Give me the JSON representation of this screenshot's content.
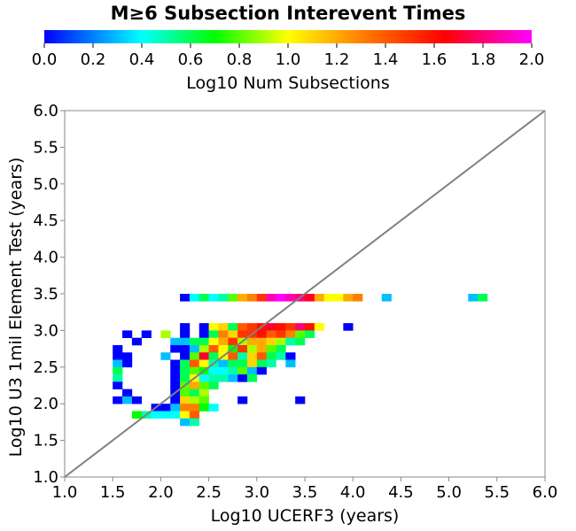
{
  "chart_data": {
    "type": "heatmap",
    "title": "M≥6 Subsection Interevent Times",
    "xlabel": "Log10 UCERF3 (years)",
    "ylabel": "Log10 U3 1mil Element Test (years)",
    "xlim": [
      1.0,
      6.0
    ],
    "ylim": [
      1.0,
      6.0
    ],
    "x_ticks": [
      "1.0",
      "1.5",
      "2.0",
      "2.5",
      "3.0",
      "3.5",
      "4.0",
      "4.5",
      "5.0",
      "5.5",
      "6.0"
    ],
    "y_ticks": [
      "1.0",
      "1.5",
      "2.0",
      "2.5",
      "3.0",
      "3.5",
      "4.0",
      "4.5",
      "5.0",
      "5.5",
      "6.0"
    ],
    "bin_size": 0.1,
    "colorbar": {
      "label": "Log10 Num Subsections",
      "range": [
        0.0,
        2.0
      ],
      "ticks": [
        "0.0",
        "0.2",
        "0.4",
        "0.6",
        "0.8",
        "1.0",
        "1.2",
        "1.4",
        "1.6",
        "1.8",
        "2.0"
      ]
    },
    "reference_line": {
      "from": [
        1.0,
        1.0
      ],
      "to": [
        6.0,
        6.0
      ],
      "color": "#808080"
    },
    "cells": [
      [
        2.2,
        3.4,
        0.0
      ],
      [
        2.3,
        3.4,
        0.4
      ],
      [
        2.4,
        3.4,
        0.6
      ],
      [
        2.5,
        3.4,
        0.4
      ],
      [
        2.6,
        3.4,
        0.5
      ],
      [
        2.7,
        3.4,
        0.8
      ],
      [
        2.8,
        3.4,
        1.2
      ],
      [
        2.9,
        3.4,
        1.3
      ],
      [
        3.0,
        3.4,
        1.5
      ],
      [
        3.1,
        3.4,
        1.9
      ],
      [
        3.2,
        3.4,
        2.0
      ],
      [
        3.3,
        3.4,
        1.9
      ],
      [
        3.4,
        3.4,
        1.8
      ],
      [
        3.5,
        3.4,
        1.7
      ],
      [
        3.6,
        3.4,
        1.2
      ],
      [
        3.7,
        3.4,
        1.0
      ],
      [
        3.8,
        3.4,
        1.0
      ],
      [
        3.9,
        3.4,
        1.2
      ],
      [
        4.0,
        3.4,
        1.3
      ],
      [
        4.3,
        3.4,
        0.3
      ],
      [
        5.2,
        3.4,
        0.3
      ],
      [
        5.3,
        3.4,
        0.6
      ],
      [
        2.2,
        3.0,
        0.0
      ],
      [
        2.4,
        3.0,
        0.0
      ],
      [
        2.5,
        3.0,
        1.0
      ],
      [
        2.6,
        3.0,
        1.1
      ],
      [
        2.7,
        3.0,
        0.6
      ],
      [
        2.8,
        3.0,
        1.4
      ],
      [
        2.9,
        3.0,
        1.5
      ],
      [
        3.0,
        3.0,
        1.6
      ],
      [
        3.1,
        3.0,
        1.7
      ],
      [
        3.2,
        3.0,
        1.6
      ],
      [
        3.3,
        3.0,
        1.5
      ],
      [
        3.4,
        3.0,
        1.8
      ],
      [
        3.5,
        3.0,
        1.6
      ],
      [
        3.6,
        3.0,
        1.0
      ],
      [
        3.9,
        3.0,
        0.0
      ],
      [
        1.6,
        2.9,
        0.0
      ],
      [
        1.8,
        2.9,
        0.0
      ],
      [
        2.0,
        2.9,
        0.9
      ],
      [
        2.2,
        2.9,
        0.0
      ],
      [
        2.4,
        2.9,
        0.0
      ],
      [
        2.5,
        2.9,
        0.6
      ],
      [
        2.6,
        2.9,
        1.3
      ],
      [
        2.7,
        2.9,
        1.1
      ],
      [
        2.8,
        2.9,
        1.5
      ],
      [
        2.9,
        2.9,
        1.5
      ],
      [
        3.0,
        2.9,
        1.6
      ],
      [
        3.1,
        2.9,
        1.4
      ],
      [
        3.2,
        2.9,
        1.5
      ],
      [
        3.3,
        2.9,
        1.3
      ],
      [
        3.4,
        2.9,
        0.8
      ],
      [
        3.5,
        2.9,
        0.6
      ],
      [
        1.7,
        2.8,
        0.0
      ],
      [
        2.1,
        2.8,
        0.3
      ],
      [
        2.2,
        2.8,
        0.3
      ],
      [
        2.3,
        2.8,
        0.6
      ],
      [
        2.4,
        2.8,
        0.6
      ],
      [
        2.5,
        2.8,
        1.0
      ],
      [
        2.6,
        2.8,
        1.2
      ],
      [
        2.7,
        2.8,
        1.5
      ],
      [
        2.8,
        2.8,
        0.9
      ],
      [
        2.9,
        2.8,
        1.2
      ],
      [
        3.0,
        2.8,
        1.2
      ],
      [
        3.1,
        2.8,
        1.1
      ],
      [
        3.2,
        2.8,
        0.9
      ],
      [
        3.3,
        2.8,
        0.5
      ],
      [
        3.4,
        2.8,
        0.6
      ],
      [
        1.5,
        2.7,
        0.0
      ],
      [
        2.1,
        2.7,
        0.0
      ],
      [
        2.2,
        2.7,
        0.0
      ],
      [
        2.3,
        2.7,
        0.3
      ],
      [
        2.4,
        2.7,
        0.9
      ],
      [
        2.5,
        2.7,
        1.4
      ],
      [
        2.6,
        2.7,
        1.0
      ],
      [
        2.7,
        2.7,
        0.7
      ],
      [
        2.8,
        2.7,
        1.5
      ],
      [
        2.9,
        2.7,
        0.9
      ],
      [
        3.0,
        2.7,
        1.2
      ],
      [
        3.1,
        2.7,
        0.8
      ],
      [
        3.2,
        2.7,
        0.6
      ],
      [
        1.5,
        2.6,
        0.0
      ],
      [
        1.6,
        2.6,
        0.0
      ],
      [
        2.0,
        2.6,
        0.3
      ],
      [
        2.2,
        2.6,
        0.0
      ],
      [
        2.3,
        2.6,
        0.8
      ],
      [
        2.4,
        2.6,
        1.7
      ],
      [
        2.5,
        2.6,
        0.6
      ],
      [
        2.6,
        2.6,
        1.0
      ],
      [
        2.7,
        2.6,
        1.4
      ],
      [
        2.8,
        2.6,
        0.5
      ],
      [
        2.9,
        2.6,
        1.1
      ],
      [
        3.0,
        2.6,
        1.4
      ],
      [
        3.1,
        2.6,
        0.6
      ],
      [
        3.2,
        2.6,
        0.5
      ],
      [
        3.3,
        2.6,
        0.0
      ],
      [
        1.5,
        2.5,
        0.3
      ],
      [
        1.6,
        2.5,
        0.0
      ],
      [
        2.1,
        2.5,
        0.0
      ],
      [
        2.2,
        2.5,
        0.6
      ],
      [
        2.3,
        2.5,
        1.4
      ],
      [
        2.4,
        2.5,
        1.0
      ],
      [
        2.5,
        2.5,
        0.5
      ],
      [
        2.6,
        2.5,
        0.3
      ],
      [
        2.7,
        2.5,
        0.6
      ],
      [
        2.8,
        2.5,
        0.6
      ],
      [
        2.9,
        2.5,
        1.1
      ],
      [
        3.0,
        2.5,
        0.6
      ],
      [
        3.1,
        2.5,
        0.5
      ],
      [
        3.3,
        2.5,
        0.3
      ],
      [
        1.5,
        2.4,
        0.6
      ],
      [
        2.1,
        2.4,
        0.0
      ],
      [
        2.2,
        2.4,
        0.6
      ],
      [
        2.3,
        2.4,
        0.8
      ],
      [
        2.4,
        2.4,
        0.7
      ],
      [
        2.5,
        2.4,
        0.4
      ],
      [
        2.6,
        2.4,
        0.4
      ],
      [
        2.7,
        2.4,
        0.5
      ],
      [
        2.8,
        2.4,
        0.8
      ],
      [
        2.9,
        2.4,
        0.3
      ],
      [
        3.0,
        2.4,
        0.0
      ],
      [
        1.5,
        2.3,
        0.5
      ],
      [
        2.1,
        2.3,
        0.0
      ],
      [
        2.2,
        2.3,
        0.6
      ],
      [
        2.3,
        2.3,
        1.0
      ],
      [
        2.4,
        2.3,
        0.4
      ],
      [
        2.5,
        2.3,
        0.5
      ],
      [
        2.6,
        2.3,
        0.5
      ],
      [
        2.7,
        2.3,
        0.3
      ],
      [
        2.8,
        2.3,
        0.0
      ],
      [
        2.9,
        2.3,
        0.6
      ],
      [
        1.5,
        2.2,
        0.0
      ],
      [
        2.1,
        2.2,
        0.0
      ],
      [
        2.2,
        2.2,
        0.8
      ],
      [
        2.3,
        2.2,
        1.2
      ],
      [
        2.4,
        2.2,
        0.8
      ],
      [
        2.5,
        2.2,
        0.6
      ],
      [
        1.6,
        2.1,
        0.0
      ],
      [
        2.1,
        2.1,
        0.0
      ],
      [
        2.2,
        2.1,
        0.8
      ],
      [
        2.3,
        2.1,
        0.6
      ],
      [
        2.4,
        2.1,
        0.9
      ],
      [
        1.5,
        2.0,
        0.0
      ],
      [
        1.6,
        2.0,
        0.3
      ],
      [
        1.7,
        2.0,
        0.0
      ],
      [
        2.1,
        2.0,
        0.0
      ],
      [
        2.2,
        2.0,
        1.1
      ],
      [
        2.3,
        2.0,
        0.9
      ],
      [
        2.4,
        2.0,
        0.8
      ],
      [
        2.8,
        2.0,
        0.0
      ],
      [
        3.4,
        2.0,
        0.0
      ],
      [
        1.9,
        1.9,
        0.0
      ],
      [
        2.0,
        1.9,
        0.0
      ],
      [
        2.1,
        1.9,
        0.3
      ],
      [
        2.2,
        1.9,
        1.3
      ],
      [
        2.3,
        1.9,
        1.3
      ],
      [
        2.4,
        1.9,
        0.7
      ],
      [
        2.5,
        1.9,
        0.4
      ],
      [
        1.7,
        1.8,
        0.7
      ],
      [
        1.8,
        1.8,
        0.5
      ],
      [
        1.9,
        1.8,
        0.4
      ],
      [
        2.0,
        1.8,
        0.4
      ],
      [
        2.1,
        1.8,
        0.4
      ],
      [
        2.2,
        1.8,
        1.0
      ],
      [
        2.3,
        1.8,
        1.4
      ],
      [
        2.2,
        1.7,
        0.3
      ],
      [
        2.3,
        1.7,
        0.5
      ]
    ]
  }
}
